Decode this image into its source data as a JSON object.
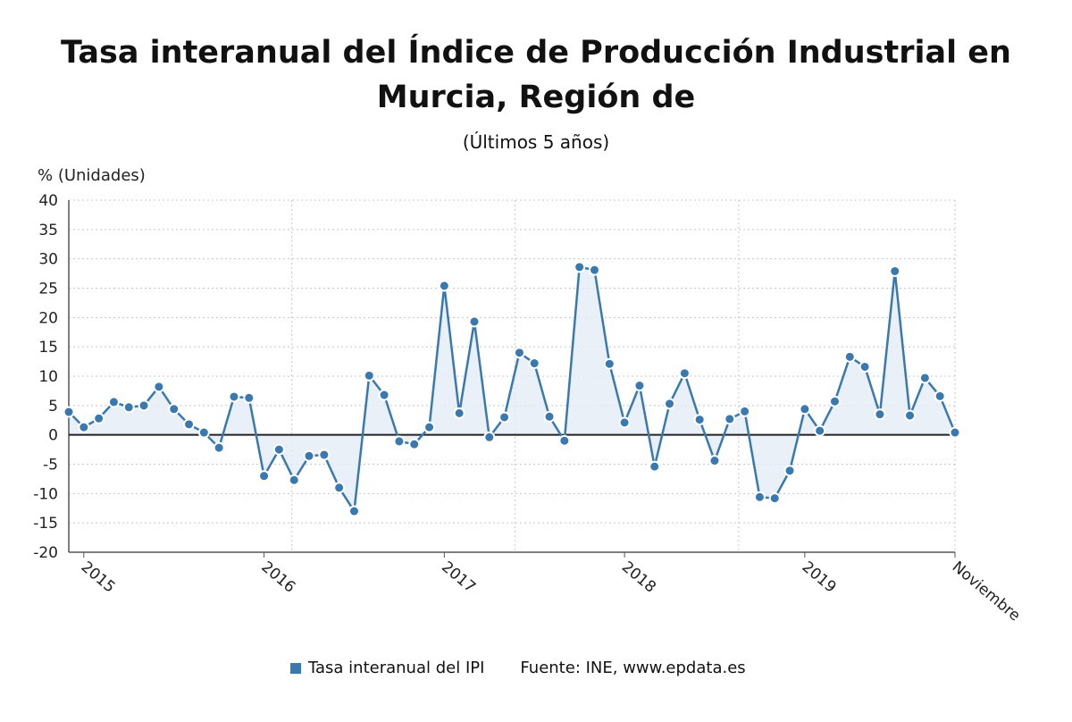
{
  "chart_data": {
    "type": "line",
    "title": "Tasa interanual del Índice de Producción Industrial en Murcia, Región de",
    "subtitle": "(Últimos 5 años)",
    "ylabel": "% (Unidades)",
    "ylim": [
      -20,
      40
    ],
    "yticks": [
      40,
      35,
      30,
      25,
      20,
      15,
      10,
      5,
      0,
      -5,
      -10,
      -15,
      -20
    ],
    "xtick_labels": [
      "2015",
      "2016",
      "2017",
      "2018",
      "2019",
      "Noviembre"
    ],
    "grid": true,
    "legend_position": "bottom",
    "series": [
      {
        "name": "Tasa interanual del IPI",
        "color": "#3a78b0",
        "values": [
          3.9,
          1.3,
          2.8,
          5.6,
          4.7,
          5.0,
          8.2,
          4.4,
          1.8,
          0.4,
          -2.2,
          6.5,
          6.3,
          -7.0,
          -2.5,
          -7.7,
          -3.6,
          -3.4,
          -9.0,
          -13.0,
          10.1,
          6.8,
          -1.1,
          -1.6,
          1.3,
          25.4,
          3.7,
          19.3,
          -0.4,
          3.0,
          14.0,
          12.2,
          3.1,
          -1.0,
          28.6,
          28.1,
          12.1,
          2.1,
          8.4,
          -5.4,
          5.3,
          10.5,
          2.6,
          -4.4,
          2.7,
          4.0,
          -10.6,
          -10.8,
          -6.1,
          4.4,
          0.7,
          5.7,
          13.3,
          11.6,
          3.5,
          27.9,
          3.3,
          9.7,
          6.6,
          0.4
        ]
      }
    ]
  },
  "legend": {
    "series_label": "Tasa interanual del IPI",
    "source": "Fuente: INE, www.epdata.es"
  }
}
